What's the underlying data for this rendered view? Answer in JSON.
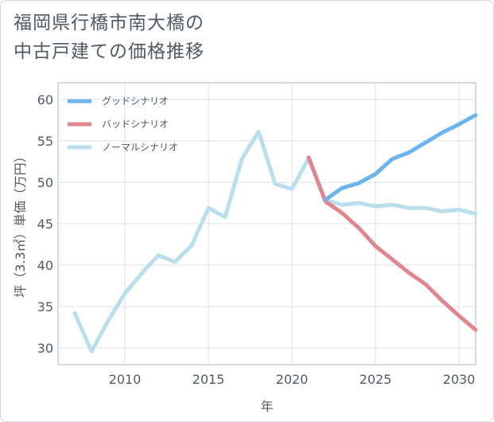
{
  "title_lines": [
    "福岡県行橋市南大橋の",
    "中古戸建ての価格推移"
  ],
  "chart_data": {
    "type": "line",
    "title": "福岡県行橋市南大橋の中古戸建ての価格推移",
    "xlabel": "年",
    "ylabel": "坪（3.3㎡）単価（万円）",
    "xlim": [
      2006,
      2031
    ],
    "ylim": [
      28,
      62
    ],
    "xticks": [
      2010,
      2015,
      2020,
      2025,
      2030
    ],
    "yticks": [
      30,
      35,
      40,
      45,
      50,
      55,
      60
    ],
    "grid": true,
    "legend_position": "top-left",
    "series": [
      {
        "name": "グッドシナリオ",
        "color": "#6cb4ea",
        "x": [
          2022,
          2023,
          2024,
          2025,
          2026,
          2027,
          2028,
          2029,
          2030,
          2031
        ],
        "values": [
          47.9,
          49.3,
          49.9,
          51.0,
          52.8,
          53.6,
          54.8,
          56.0,
          57.0,
          58.1
        ]
      },
      {
        "name": "バッドシナリオ",
        "color": "#e0868e",
        "x": [
          2021,
          2022,
          2023,
          2024,
          2025,
          2026,
          2027,
          2028,
          2029,
          2030,
          2031
        ],
        "values": [
          53.0,
          47.7,
          46.3,
          44.5,
          42.3,
          40.7,
          39.1,
          37.7,
          35.7,
          33.9,
          32.2
        ]
      },
      {
        "name": "ノーマルシナリオ",
        "color": "#b9deec",
        "x": [
          2007,
          2008,
          2009,
          2010,
          2011,
          2012,
          2013,
          2014,
          2015,
          2016,
          2017,
          2018,
          2019,
          2020,
          2021,
          2022,
          2023,
          2024,
          2025,
          2026,
          2027,
          2028,
          2029,
          2030,
          2031
        ],
        "values": [
          34.2,
          29.6,
          33.3,
          36.6,
          39.0,
          41.2,
          40.4,
          42.4,
          46.9,
          45.8,
          52.8,
          56.1,
          49.8,
          49.2,
          52.9,
          47.8,
          47.3,
          47.5,
          47.1,
          47.3,
          46.9,
          46.9,
          46.5,
          46.7,
          46.2
        ]
      }
    ]
  }
}
